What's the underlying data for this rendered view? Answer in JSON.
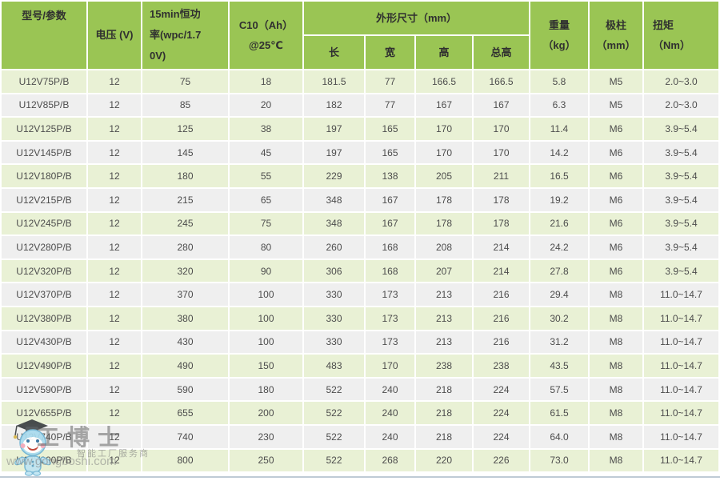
{
  "table": {
    "header": {
      "model": "型号/参数",
      "voltage": "电压 (V)",
      "power_lines": [
        "15min恒功",
        "率(wpc/1.7",
        "0V)"
      ],
      "c10_lines": [
        "C10（Ah）",
        "@25℃"
      ],
      "dims": "外形尺寸（mm）",
      "dim_sub": [
        "长",
        "宽",
        "高",
        "总高"
      ],
      "weight_lines": [
        "重量",
        "（kg）"
      ],
      "terminal_lines": [
        "极柱",
        "（mm）"
      ],
      "torque_lines": [
        "扭矩",
        "（Nm）"
      ]
    },
    "rows": [
      [
        "U12V75P/B",
        "12",
        "75",
        "18",
        "181.5",
        "77",
        "166.5",
        "166.5",
        "5.8",
        "M5",
        "2.0~3.0"
      ],
      [
        "U12V85P/B",
        "12",
        "85",
        "20",
        "182",
        "77",
        "167",
        "167",
        "6.3",
        "M5",
        "2.0~3.0"
      ],
      [
        "U12V125P/B",
        "12",
        "125",
        "38",
        "197",
        "165",
        "170",
        "170",
        "11.4",
        "M6",
        "3.9~5.4"
      ],
      [
        "U12V145P/B",
        "12",
        "145",
        "45",
        "197",
        "165",
        "170",
        "170",
        "14.2",
        "M6",
        "3.9~5.4"
      ],
      [
        "U12V180P/B",
        "12",
        "180",
        "55",
        "229",
        "138",
        "205",
        "211",
        "16.5",
        "M6",
        "3.9~5.4"
      ],
      [
        "U12V215P/B",
        "12",
        "215",
        "65",
        "348",
        "167",
        "178",
        "178",
        "19.2",
        "M6",
        "3.9~5.4"
      ],
      [
        "U12V245P/B",
        "12",
        "245",
        "75",
        "348",
        "167",
        "178",
        "178",
        "21.6",
        "M6",
        "3.9~5.4"
      ],
      [
        "U12V280P/B",
        "12",
        "280",
        "80",
        "260",
        "168",
        "208",
        "214",
        "24.2",
        "M6",
        "3.9~5.4"
      ],
      [
        "U12V320P/B",
        "12",
        "320",
        "90",
        "306",
        "168",
        "207",
        "214",
        "27.8",
        "M6",
        "3.9~5.4"
      ],
      [
        "U12V370P/B",
        "12",
        "370",
        "100",
        "330",
        "173",
        "213",
        "216",
        "29.4",
        "M8",
        "11.0~14.7"
      ],
      [
        "U12V380P/B",
        "12",
        "380",
        "100",
        "330",
        "173",
        "213",
        "216",
        "30.2",
        "M8",
        "11.0~14.7"
      ],
      [
        "U12V430P/B",
        "12",
        "430",
        "100",
        "330",
        "173",
        "213",
        "216",
        "31.2",
        "M8",
        "11.0~14.7"
      ],
      [
        "U12V490P/B",
        "12",
        "490",
        "150",
        "483",
        "170",
        "238",
        "238",
        "43.5",
        "M8",
        "11.0~14.7"
      ],
      [
        "U12V590P/B",
        "12",
        "590",
        "180",
        "522",
        "240",
        "218",
        "224",
        "57.5",
        "M8",
        "11.0~14.7"
      ],
      [
        "U12V655P/B",
        "12",
        "655",
        "200",
        "522",
        "240",
        "218",
        "224",
        "61.5",
        "M8",
        "11.0~14.7"
      ],
      [
        "U12V740P/B",
        "12",
        "740",
        "230",
        "522",
        "240",
        "218",
        "224",
        "64.0",
        "M8",
        "11.0~14.7"
      ],
      [
        "U12V800P/B",
        "12",
        "800",
        "250",
        "522",
        "268",
        "220",
        "226",
        "73.0",
        "M8",
        "11.0~14.7"
      ]
    ]
  },
  "watermark": {
    "brand": "工博士",
    "tagline": "智能工厂服务商",
    "url": "www.gongboshi.com"
  },
  "colors": {
    "header_green": "#9ac554",
    "row_green": "#e9f1d5",
    "row_gray": "#efefef",
    "bottom_rule": "#bfcbd5"
  }
}
